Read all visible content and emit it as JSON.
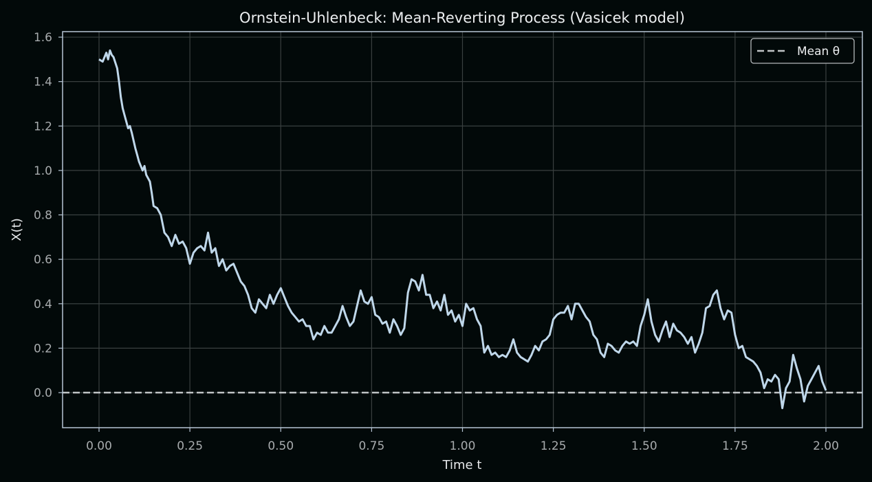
{
  "chart_data": {
    "type": "line",
    "title": "Ornstein-Uhlenbeck: Mean-Reverting Process (Vasicek model)",
    "xlabel": "Time t",
    "ylabel": "X(t)",
    "xlim": [
      -0.1,
      2.1
    ],
    "ylim": [
      -0.16,
      1.62
    ],
    "xticks": [
      "0.00",
      "0.25",
      "0.50",
      "0.75",
      "1.00",
      "1.25",
      "1.50",
      "1.75",
      "2.00"
    ],
    "yticks": [
      "0.0",
      "0.2",
      "0.4",
      "0.6",
      "0.8",
      "1.0",
      "1.2",
      "1.4",
      "1.6"
    ],
    "grid": true,
    "legend_position": "upper right",
    "legend": [
      {
        "label": "Mean θ",
        "style": "dashed",
        "color": "#c0c4c6"
      }
    ],
    "colors": {
      "path": "#bfd7ea",
      "mean": "#c0c4c6",
      "background": "#020909",
      "spine": "#b7c6d6",
      "grid": "#3a4040"
    },
    "mean_theta": 0.0,
    "series": [
      {
        "name": "X(t)",
        "x": [
          0.0,
          0.01,
          0.02,
          0.025,
          0.03,
          0.035,
          0.04,
          0.05,
          0.055,
          0.06,
          0.065,
          0.07,
          0.08,
          0.085,
          0.09,
          0.1,
          0.105,
          0.11,
          0.12,
          0.125,
          0.13,
          0.14,
          0.145,
          0.15,
          0.16,
          0.17,
          0.18,
          0.19,
          0.2,
          0.21,
          0.22,
          0.23,
          0.24,
          0.25,
          0.26,
          0.27,
          0.28,
          0.29,
          0.3,
          0.31,
          0.32,
          0.33,
          0.34,
          0.35,
          0.36,
          0.37,
          0.38,
          0.39,
          0.4,
          0.41,
          0.42,
          0.43,
          0.44,
          0.45,
          0.46,
          0.47,
          0.48,
          0.49,
          0.5,
          0.51,
          0.52,
          0.53,
          0.54,
          0.55,
          0.56,
          0.57,
          0.58,
          0.59,
          0.6,
          0.61,
          0.62,
          0.63,
          0.64,
          0.65,
          0.66,
          0.67,
          0.68,
          0.69,
          0.7,
          0.71,
          0.72,
          0.73,
          0.74,
          0.75,
          0.76,
          0.77,
          0.78,
          0.79,
          0.8,
          0.81,
          0.82,
          0.83,
          0.84,
          0.85,
          0.86,
          0.87,
          0.88,
          0.89,
          0.9,
          0.91,
          0.92,
          0.93,
          0.94,
          0.95,
          0.96,
          0.97,
          0.98,
          0.99,
          1.0,
          1.01,
          1.02,
          1.03,
          1.04,
          1.05,
          1.06,
          1.07,
          1.08,
          1.09,
          1.1,
          1.11,
          1.12,
          1.13,
          1.14,
          1.15,
          1.16,
          1.17,
          1.18,
          1.19,
          1.2,
          1.21,
          1.22,
          1.23,
          1.24,
          1.25,
          1.26,
          1.27,
          1.28,
          1.29,
          1.3,
          1.31,
          1.32,
          1.33,
          1.34,
          1.35,
          1.36,
          1.37,
          1.38,
          1.39,
          1.4,
          1.41,
          1.42,
          1.43,
          1.44,
          1.45,
          1.46,
          1.47,
          1.48,
          1.49,
          1.5,
          1.51,
          1.52,
          1.53,
          1.54,
          1.55,
          1.56,
          1.57,
          1.58,
          1.59,
          1.6,
          1.61,
          1.62,
          1.63,
          1.64,
          1.65,
          1.66,
          1.67,
          1.68,
          1.69,
          1.7,
          1.71,
          1.72,
          1.73,
          1.74,
          1.75,
          1.76,
          1.77,
          1.78,
          1.79,
          1.8,
          1.81,
          1.82,
          1.83,
          1.84,
          1.85,
          1.86,
          1.87,
          1.88,
          1.89,
          1.9,
          1.91,
          1.92,
          1.93,
          1.94,
          1.95,
          1.96,
          1.97,
          1.98,
          1.99,
          2.0
        ],
        "y": [
          1.5,
          1.49,
          1.53,
          1.5,
          1.54,
          1.52,
          1.51,
          1.46,
          1.4,
          1.33,
          1.28,
          1.25,
          1.19,
          1.2,
          1.17,
          1.1,
          1.07,
          1.04,
          1.0,
          1.02,
          0.98,
          0.95,
          0.9,
          0.84,
          0.83,
          0.8,
          0.72,
          0.7,
          0.66,
          0.71,
          0.67,
          0.68,
          0.65,
          0.58,
          0.63,
          0.65,
          0.66,
          0.64,
          0.72,
          0.63,
          0.65,
          0.57,
          0.6,
          0.55,
          0.57,
          0.58,
          0.54,
          0.5,
          0.48,
          0.44,
          0.38,
          0.36,
          0.42,
          0.4,
          0.38,
          0.44,
          0.4,
          0.44,
          0.47,
          0.43,
          0.39,
          0.36,
          0.34,
          0.32,
          0.33,
          0.3,
          0.3,
          0.24,
          0.27,
          0.26,
          0.3,
          0.27,
          0.27,
          0.3,
          0.33,
          0.39,
          0.34,
          0.3,
          0.32,
          0.39,
          0.46,
          0.41,
          0.4,
          0.43,
          0.35,
          0.34,
          0.31,
          0.32,
          0.27,
          0.33,
          0.3,
          0.26,
          0.29,
          0.45,
          0.51,
          0.5,
          0.46,
          0.53,
          0.44,
          0.44,
          0.38,
          0.41,
          0.37,
          0.44,
          0.35,
          0.37,
          0.32,
          0.35,
          0.3,
          0.4,
          0.37,
          0.38,
          0.33,
          0.3,
          0.18,
          0.21,
          0.17,
          0.18,
          0.16,
          0.17,
          0.16,
          0.19,
          0.24,
          0.18,
          0.16,
          0.15,
          0.14,
          0.17,
          0.21,
          0.19,
          0.23,
          0.24,
          0.26,
          0.33,
          0.35,
          0.36,
          0.36,
          0.39,
          0.33,
          0.4,
          0.4,
          0.37,
          0.34,
          0.32,
          0.26,
          0.24,
          0.18,
          0.16,
          0.22,
          0.21,
          0.19,
          0.18,
          0.21,
          0.23,
          0.22,
          0.23,
          0.21,
          0.3,
          0.35,
          0.42,
          0.32,
          0.26,
          0.23,
          0.28,
          0.32,
          0.25,
          0.31,
          0.28,
          0.27,
          0.25,
          0.22,
          0.25,
          0.18,
          0.22,
          0.27,
          0.38,
          0.39,
          0.44,
          0.46,
          0.38,
          0.33,
          0.37,
          0.36,
          0.26,
          0.2,
          0.21,
          0.16,
          0.15,
          0.14,
          0.12,
          0.09,
          0.02,
          0.06,
          0.05,
          0.08,
          0.06,
          -0.07,
          0.02,
          0.05,
          0.17,
          0.11,
          0.06,
          -0.04,
          0.03,
          0.06,
          0.09,
          0.12,
          0.05,
          0.01
        ]
      }
    ]
  },
  "plot": {
    "title": "Ornstein-Uhlenbeck: Mean-Reverting Process (Vasicek model)",
    "xlabel": "Time t",
    "ylabel": "X(t)",
    "legend_label": "Mean θ",
    "xticks": [
      "0.00",
      "0.25",
      "0.50",
      "0.75",
      "1.00",
      "1.25",
      "1.50",
      "1.75",
      "2.00"
    ],
    "yticks": [
      "0.0",
      "0.2",
      "0.4",
      "0.6",
      "0.8",
      "1.0",
      "1.2",
      "1.4",
      "1.6"
    ]
  }
}
